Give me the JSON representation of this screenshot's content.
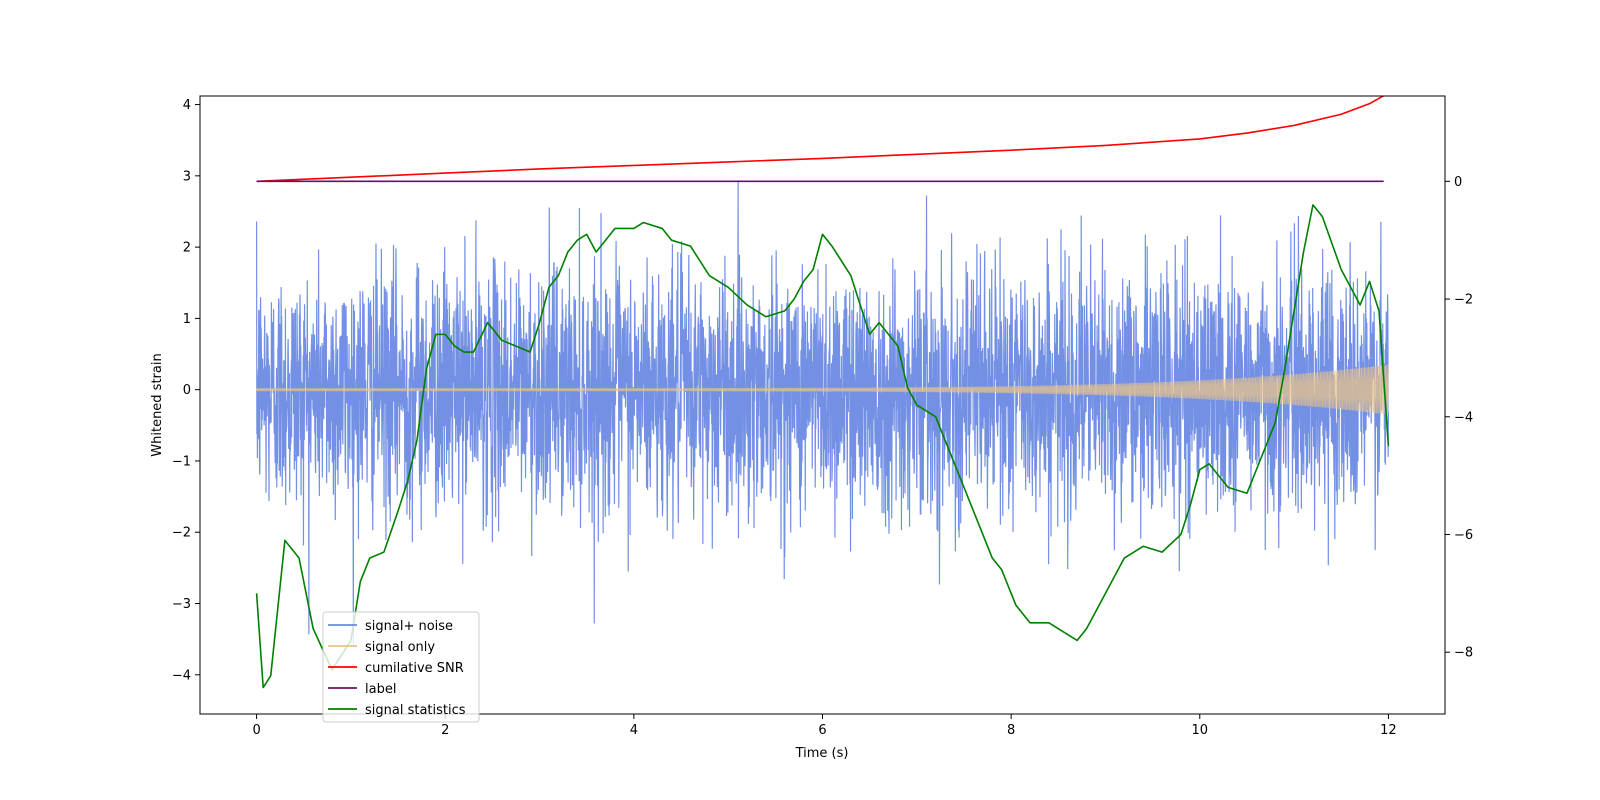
{
  "chart_data": {
    "type": "line",
    "xlabel": "Time (s)",
    "ylabel": "Whitened strain",
    "xlim": [
      -0.6,
      12.6
    ],
    "ylim": [
      -4.55,
      4.12
    ],
    "ylim_right": [
      -9.05,
      1.45
    ],
    "x_ticks": [
      0,
      2,
      4,
      6,
      8,
      10,
      12
    ],
    "y_ticks": [
      -4,
      -3,
      -2,
      -1,
      0,
      1,
      2,
      3,
      4
    ],
    "y_ticks_right": [
      -8,
      -6,
      -4,
      -2,
      0
    ],
    "x_tick_labels": [
      "0",
      "2",
      "4",
      "6",
      "8",
      "10",
      "12"
    ],
    "y_tick_labels": [
      "−4",
      "−3",
      "−2",
      "−1",
      "0",
      "1",
      "2",
      "3",
      "4"
    ],
    "y_tick_labels_right": [
      "−8",
      "−6",
      "−4",
      "−2",
      "0"
    ],
    "legend_position": "lower-left",
    "series": [
      {
        "name": "signal+ noise",
        "color": "#6c8ae4",
        "axis": "left",
        "style": "noise",
        "x_range": [
          0,
          12
        ]
      },
      {
        "name": "signal only",
        "color": "#e8c38a",
        "axis": "left",
        "style": "chirp",
        "x_range": [
          0,
          12
        ]
      },
      {
        "name": "cumilative SNR",
        "color": "#ff0000",
        "axis": "right",
        "x": [
          0,
          1,
          2,
          3,
          4,
          5,
          6,
          7,
          8,
          9,
          10,
          10.5,
          11,
          11.5,
          11.8,
          12
        ],
        "values": [
          0.0,
          0.07,
          0.14,
          0.21,
          0.27,
          0.33,
          0.39,
          0.46,
          0.53,
          0.61,
          0.72,
          0.82,
          0.95,
          1.14,
          1.32,
          1.5
        ]
      },
      {
        "name": "label",
        "color": "#6b0e6b",
        "axis": "right",
        "x": [
          0,
          11.95
        ],
        "values": [
          0.0,
          0.0
        ]
      },
      {
        "name": "signal statistics",
        "color": "#008000",
        "axis": "right",
        "x": [
          0,
          0.07,
          0.15,
          0.3,
          0.45,
          0.6,
          0.8,
          1.0,
          1.1,
          1.2,
          1.35,
          1.5,
          1.6,
          1.7,
          1.8,
          1.9,
          2.0,
          2.1,
          2.2,
          2.3,
          2.45,
          2.6,
          2.75,
          2.9,
          3.0,
          3.1,
          3.2,
          3.3,
          3.4,
          3.5,
          3.6,
          3.7,
          3.8,
          3.9,
          4.0,
          4.1,
          4.3,
          4.4,
          4.6,
          4.8,
          5.0,
          5.2,
          5.4,
          5.6,
          5.7,
          5.8,
          5.9,
          6.0,
          6.1,
          6.3,
          6.5,
          6.6,
          6.7,
          6.8,
          6.9,
          7.0,
          7.2,
          7.4,
          7.6,
          7.8,
          7.9,
          8.05,
          8.2,
          8.4,
          8.6,
          8.7,
          8.8,
          9.0,
          9.2,
          9.4,
          9.6,
          9.8,
          9.9,
          10.0,
          10.1,
          10.3,
          10.5,
          10.6,
          10.8,
          10.9,
          11.0,
          11.1,
          11.2,
          11.3,
          11.5,
          11.7,
          11.8,
          11.9,
          12.0
        ],
        "values": [
          -7.0,
          -8.6,
          -8.4,
          -6.1,
          -6.4,
          -7.6,
          -8.3,
          -7.8,
          -6.8,
          -6.4,
          -6.3,
          -5.6,
          -5.1,
          -4.4,
          -3.2,
          -2.6,
          -2.6,
          -2.8,
          -2.9,
          -2.9,
          -2.4,
          -2.7,
          -2.8,
          -2.9,
          -2.4,
          -1.8,
          -1.6,
          -1.2,
          -1.0,
          -0.9,
          -1.2,
          -1.0,
          -0.8,
          -0.8,
          -0.8,
          -0.7,
          -0.8,
          -1.0,
          -1.1,
          -1.6,
          -1.8,
          -2.1,
          -2.3,
          -2.2,
          -2.0,
          -1.7,
          -1.5,
          -0.9,
          -1.1,
          -1.6,
          -2.6,
          -2.4,
          -2.6,
          -2.8,
          -3.5,
          -3.8,
          -4.0,
          -4.8,
          -5.6,
          -6.4,
          -6.6,
          -7.2,
          -7.5,
          -7.5,
          -7.7,
          -7.8,
          -7.6,
          -7.0,
          -6.4,
          -6.2,
          -6.3,
          -6.0,
          -5.5,
          -4.9,
          -4.8,
          -5.2,
          -5.3,
          -4.9,
          -4.1,
          -3.2,
          -2.2,
          -1.2,
          -0.4,
          -0.6,
          -1.5,
          -2.1,
          -1.7,
          -2.2,
          -4.5
        ]
      }
    ]
  }
}
